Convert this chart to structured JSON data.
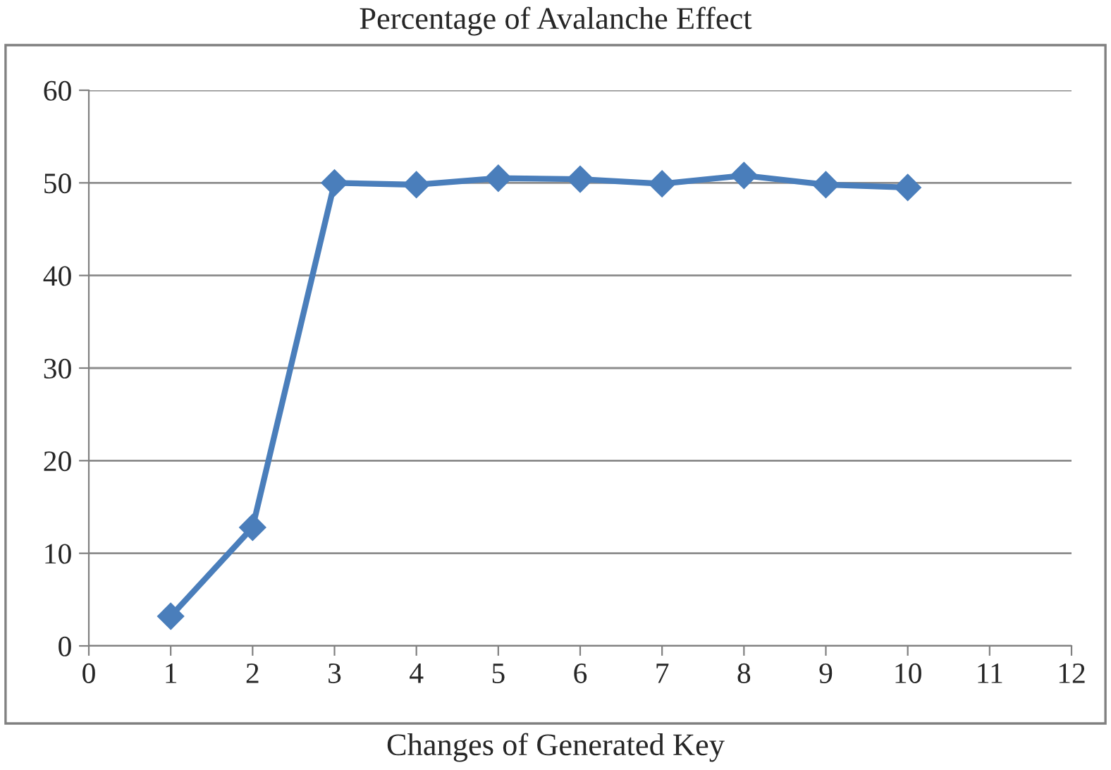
{
  "chart_data": {
    "type": "line",
    "title": "Percentage of Avalanche Effect",
    "xlabel": "Changes of Generated Key",
    "x": [
      1,
      2,
      3,
      4,
      5,
      6,
      7,
      8,
      9,
      10
    ],
    "series": [
      {
        "color": "#4a7ebb",
        "values": [
          3.2,
          12.8,
          50.0,
          49.8,
          50.5,
          50.4,
          49.9,
          50.8,
          49.8,
          49.5
        ]
      }
    ],
    "xlim": [
      0,
      12
    ],
    "xticks": [
      0,
      1,
      2,
      3,
      4,
      5,
      6,
      7,
      8,
      9,
      10,
      11,
      12
    ],
    "ylim": [
      0,
      60
    ],
    "yticks": [
      0,
      10,
      20,
      30,
      40,
      50,
      60
    ],
    "grid": "y",
    "marker": "diamond",
    "line_style": "solid",
    "legend": false
  }
}
